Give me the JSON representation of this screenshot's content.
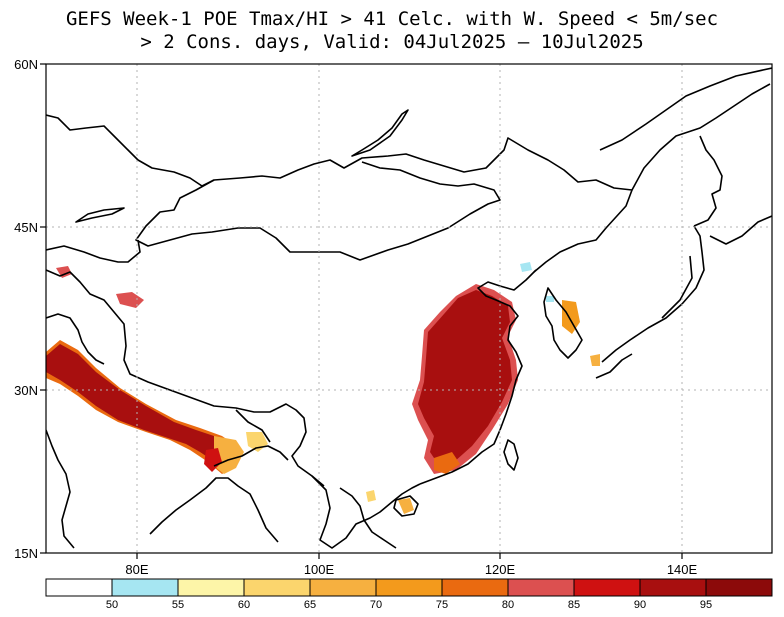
{
  "title": {
    "line1": "GEFS Week-1 POE Tmax/HI > 41 Celc. with W. Speed < 5m/sec",
    "line2": "> 2 Cons. days, Valid: 04Jul2025 – 10Jul2025"
  },
  "map": {
    "lon_range": [
      70,
      150
    ],
    "lat_range": [
      15,
      60
    ],
    "lat_labels": [
      "60N",
      "45N",
      "30N",
      "15N"
    ],
    "lon_labels": [
      "80E",
      "100E",
      "120E",
      "140E"
    ],
    "grid": "dotted"
  },
  "colorbar": {
    "labels": [
      "50",
      "55",
      "60",
      "65",
      "70",
      "75",
      "80",
      "85",
      "90",
      "95"
    ],
    "colors": [
      "#ffffff",
      "#a6e6f2",
      "#fdf5a8",
      "#fbd56d",
      "#f6b040",
      "#f39a1c",
      "#ea6a10",
      "#dc5050",
      "#cf1111",
      "#a80f0f",
      "#8c0a0a"
    ]
  }
}
